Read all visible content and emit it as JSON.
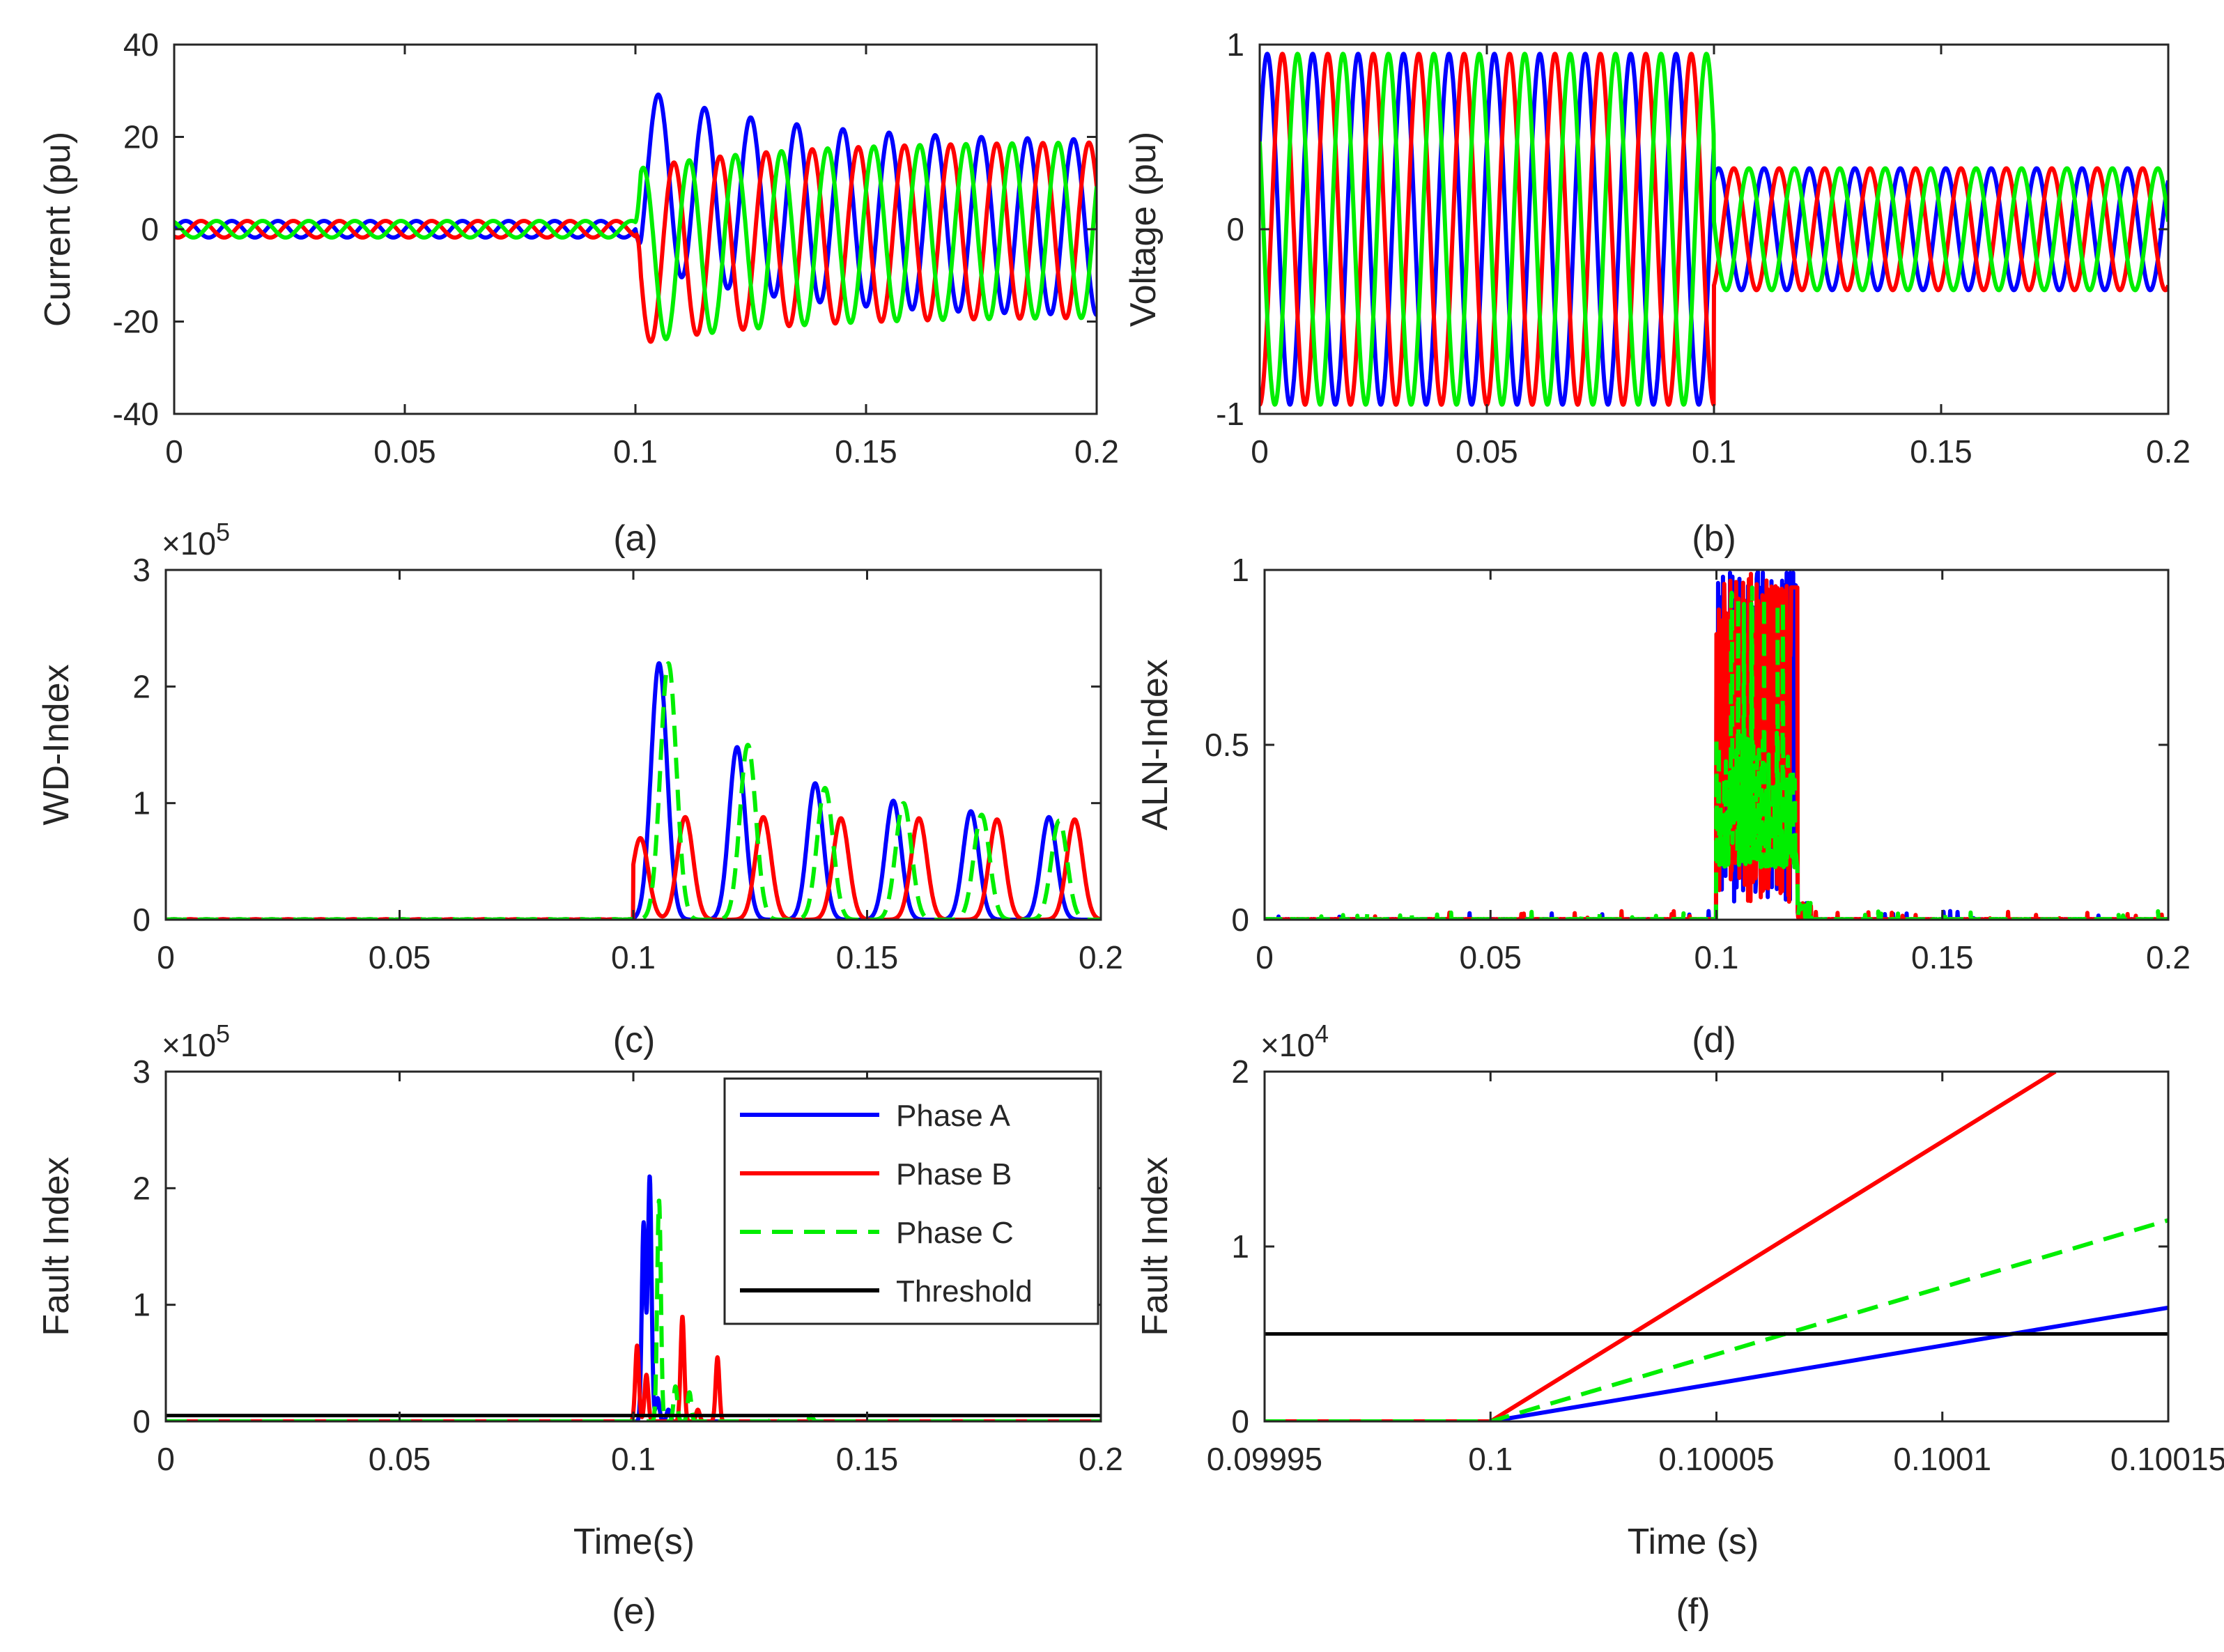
{
  "figure": {
    "colors": {
      "phase_a": "#0000ff",
      "phase_b": "#ff0000",
      "phase_c": "#00ee00",
      "threshold": "#000000",
      "axis": "#262626"
    },
    "legend": {
      "entries": [
        "Phase A",
        "Phase B",
        "Phase C",
        "Threshold"
      ],
      "placement": "top-right of panel (e)"
    }
  },
  "chart_data": [
    {
      "id": "a",
      "type": "line",
      "caption": "(a)",
      "ylabel": "Current (pu)",
      "xlabel": "",
      "xlim": [
        0,
        0.2
      ],
      "ylim": [
        -40,
        40
      ],
      "xticks": [
        0,
        0.05,
        0.1,
        0.15,
        0.2
      ],
      "xtick_labels": [
        "0",
        "0.05",
        "0.1",
        "0.15",
        "0.2"
      ],
      "yticks": [
        -40,
        -20,
        0,
        20,
        40
      ],
      "ytick_labels": [
        "-40",
        "-20",
        "0",
        "20",
        "40"
      ],
      "exponent": "",
      "model": {
        "kind": "fault-current",
        "freq_hz": 100,
        "prefault_amplitude": 1.8,
        "fault_time": 0.1,
        "steady_amplitude": 19,
        "dc_offset_peak": 12,
        "dc_decay_tau": 0.03
      },
      "series": [
        {
          "name": "Phase A",
          "phase_deg": 0,
          "style": "solid",
          "first_peak": 31
        },
        {
          "name": "Phase B",
          "phase_deg": -120,
          "style": "solid",
          "first_peak": -18
        },
        {
          "name": "Phase C",
          "phase_deg": 120,
          "style": "solid",
          "first_peak": -31
        }
      ]
    },
    {
      "id": "b",
      "type": "line",
      "caption": "(b)",
      "ylabel": "Voltage (pu)",
      "xlabel": "",
      "xlim": [
        0,
        0.2
      ],
      "ylim": [
        -1,
        1
      ],
      "xticks": [
        0,
        0.05,
        0.1,
        0.15,
        0.2
      ],
      "xtick_labels": [
        "0",
        "0.05",
        "0.1",
        "0.15",
        "0.2"
      ],
      "yticks": [
        -1,
        0,
        1
      ],
      "ytick_labels": [
        "-1",
        "0",
        "1"
      ],
      "exponent": "",
      "model": {
        "kind": "sag-voltage",
        "freq_hz": 100,
        "prefault_amplitude": 0.95,
        "fault_time": 0.1,
        "postfault_amplitude": 0.33
      },
      "series": [
        {
          "name": "Phase A",
          "phase_deg": 30,
          "style": "solid"
        },
        {
          "name": "Phase B",
          "phase_deg": -90,
          "style": "solid"
        },
        {
          "name": "Phase C",
          "phase_deg": 150,
          "style": "solid"
        }
      ]
    },
    {
      "id": "c",
      "type": "line",
      "caption": "(c)",
      "ylabel": "WD-Index",
      "xlabel": "",
      "xlim": [
        0,
        0.2
      ],
      "ylim": [
        0,
        3
      ],
      "xticks": [
        0,
        0.05,
        0.1,
        0.15,
        0.2
      ],
      "xtick_labels": [
        "0",
        "0.05",
        "0.1",
        "0.15",
        "0.2"
      ],
      "yticks": [
        0,
        1,
        2,
        3
      ],
      "ytick_labels": [
        "0",
        "1",
        "2",
        "3"
      ],
      "exponent": "×10^5",
      "model": {
        "kind": "pulse-train",
        "period": 0.0167,
        "width": 0.0024,
        "steady_peak": 0.85,
        "start": 0.1
      },
      "series": [
        {
          "name": "Phase A",
          "style": "solid",
          "peaks": [
            [
              0.1055,
              2.2
            ],
            [
              0.1222,
              1.48
            ],
            [
              0.1389,
              1.17
            ],
            [
              0.1556,
              1.02
            ],
            [
              0.1722,
              0.93
            ],
            [
              0.1889,
              0.88
            ]
          ]
        },
        {
          "name": "Phase B",
          "style": "solid",
          "peaks": [
            [
              0.1015,
              0.7
            ],
            [
              0.1111,
              0.88
            ],
            [
              0.1278,
              0.88
            ],
            [
              0.1444,
              0.87
            ],
            [
              0.1611,
              0.87
            ],
            [
              0.1778,
              0.86
            ],
            [
              0.1944,
              0.86
            ]
          ]
        },
        {
          "name": "Phase C",
          "style": "dashed",
          "peaks": [
            [
              0.1075,
              2.2
            ],
            [
              0.1245,
              1.5
            ],
            [
              0.141,
              1.13
            ],
            [
              0.1578,
              1.0
            ],
            [
              0.1745,
              0.9
            ],
            [
              0.1911,
              0.85
            ]
          ]
        }
      ]
    },
    {
      "id": "d",
      "type": "line",
      "caption": "(d)",
      "ylabel": "ALN-Index",
      "xlabel": "",
      "xlim": [
        0,
        0.2
      ],
      "ylim": [
        0,
        1
      ],
      "xticks": [
        0,
        0.05,
        0.1,
        0.15,
        0.2
      ],
      "xtick_labels": [
        "0",
        "0.05",
        "0.1",
        "0.15",
        "0.2"
      ],
      "yticks": [
        0,
        0.5,
        1
      ],
      "ytick_labels": [
        "0",
        "0.5",
        "1"
      ],
      "exponent": "",
      "model": {
        "kind": "burst",
        "burst_start": 0.1,
        "burst_end": 0.118
      },
      "series": [
        {
          "name": "Phase A",
          "style": "solid"
        },
        {
          "name": "Phase B",
          "style": "solid"
        },
        {
          "name": "Phase C",
          "style": "dashed"
        }
      ]
    },
    {
      "id": "e",
      "type": "line",
      "caption": "(e)",
      "ylabel": "Fault Index",
      "xlabel": "Time(s)",
      "xlim": [
        0,
        0.2
      ],
      "ylim": [
        0,
        3
      ],
      "xticks": [
        0,
        0.05,
        0.1,
        0.15,
        0.2
      ],
      "xtick_labels": [
        "0",
        "0.05",
        "0.1",
        "0.15",
        "0.2"
      ],
      "yticks": [
        0,
        1,
        2,
        3
      ],
      "ytick_labels": [
        "0",
        "1",
        "2",
        "3"
      ],
      "exponent": "×10^5",
      "series": [
        {
          "name": "Phase A",
          "style": "solid",
          "spikes": [
            [
              0.1022,
              1.7
            ],
            [
              0.1035,
              2.1
            ],
            [
              0.1052,
              0.2
            ],
            [
              0.1075,
              0.1
            ]
          ]
        },
        {
          "name": "Phase B",
          "style": "solid",
          "spikes": [
            [
              0.1008,
              0.65
            ],
            [
              0.1028,
              0.4
            ],
            [
              0.1105,
              0.9
            ],
            [
              0.118,
              0.55
            ],
            [
              0.1138,
              0.1
            ]
          ]
        },
        {
          "name": "Phase C",
          "style": "dashed",
          "spikes": [
            [
              0.1055,
              1.9
            ],
            [
              0.109,
              0.3
            ],
            [
              0.112,
              0.25
            ],
            [
              0.13,
              0.05
            ],
            [
              0.138,
              0.05
            ]
          ]
        },
        {
          "name": "Threshold",
          "style": "solid",
          "value": 0.05
        }
      ]
    },
    {
      "id": "f",
      "type": "line",
      "caption": "(f)",
      "ylabel": "Fault Index",
      "xlabel": "Time (s)",
      "xlim": [
        0.09995,
        0.10015
      ],
      "ylim": [
        0,
        2
      ],
      "xticks": [
        0.09995,
        0.1,
        0.10005,
        0.1001,
        0.10015
      ],
      "xtick_labels": [
        "0.09995",
        "0.1",
        "0.10005",
        "0.1001",
        "0.10015"
      ],
      "yticks": [
        0,
        1,
        2
      ],
      "ytick_labels": [
        "0",
        "1",
        "2"
      ],
      "exponent": "×10^4",
      "series": [
        {
          "name": "Phase A",
          "style": "solid",
          "points": [
            [
              0.09995,
              0
            ],
            [
              0.1,
              0
            ],
            [
              0.10015,
              0.65
            ]
          ]
        },
        {
          "name": "Phase B",
          "style": "solid",
          "points": [
            [
              0.09995,
              0
            ],
            [
              0.1,
              0
            ],
            [
              0.100125,
              2.0
            ]
          ]
        },
        {
          "name": "Phase C",
          "style": "dashed",
          "points": [
            [
              0.09995,
              0
            ],
            [
              0.1,
              0
            ],
            [
              0.10015,
              1.15
            ]
          ]
        },
        {
          "name": "Threshold",
          "style": "solid",
          "points": [
            [
              0.09995,
              0.5
            ],
            [
              0.10015,
              0.5
            ]
          ]
        }
      ]
    }
  ]
}
